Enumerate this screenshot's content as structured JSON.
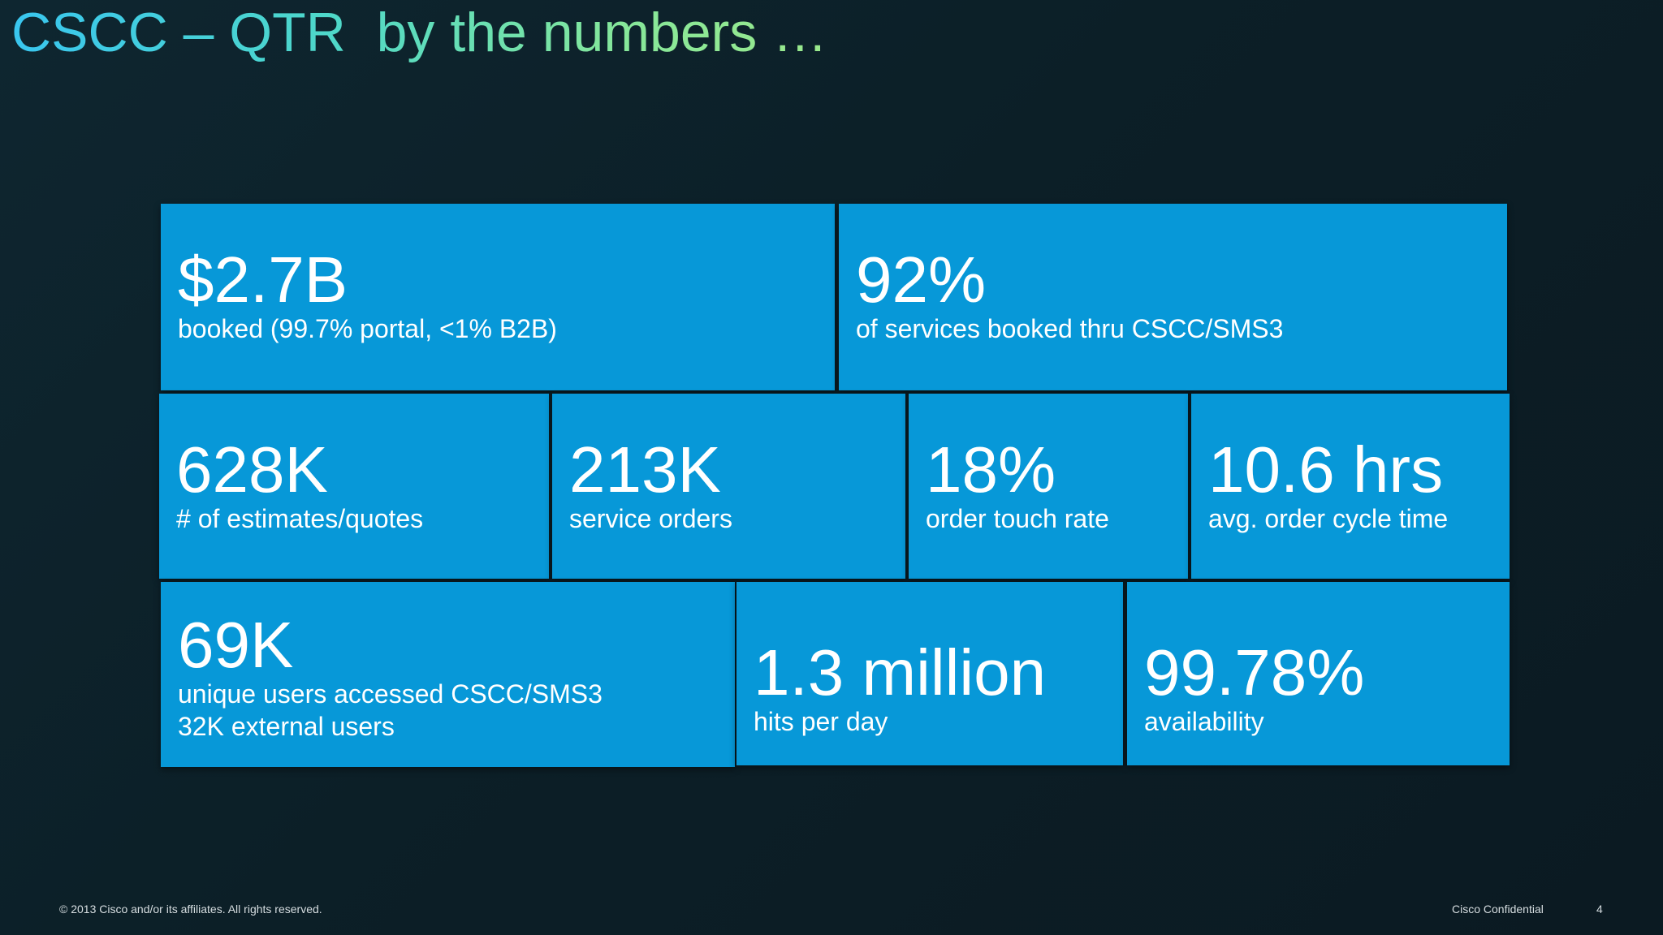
{
  "slide": {
    "title": "CSCC – QTR  by the numbers …"
  },
  "tiles": [
    {
      "value": "$2.7B",
      "desc": "booked (99.7% portal, <1% B2B)"
    },
    {
      "value": "92%",
      "desc": "of services booked thru CSCC/SMS3"
    },
    {
      "value": "628K",
      "desc": "# of estimates/quotes"
    },
    {
      "value": "213K",
      "desc": "service orders"
    },
    {
      "value": "18%",
      "desc": "order touch rate"
    },
    {
      "value": "10.6 hrs",
      "desc": "avg. order cycle time"
    },
    {
      "value": "69K",
      "desc": "unique users accessed CSCC/SMS3",
      "desc2": "32K external users"
    },
    {
      "value": "1.3 million",
      "desc": "hits per day"
    },
    {
      "value": "99.78%",
      "desc": "availability"
    }
  ],
  "footer": {
    "copyright": "© 2013 Cisco and/or its affiliates. All rights reserved.",
    "confidential": "Cisco Confidential",
    "page_number": "4"
  },
  "colors": {
    "tile_blue": "#0798d8",
    "background": "#0c1f27",
    "title_gradient_start": "#39c6ef",
    "title_gradient_end": "#9ae98c"
  }
}
